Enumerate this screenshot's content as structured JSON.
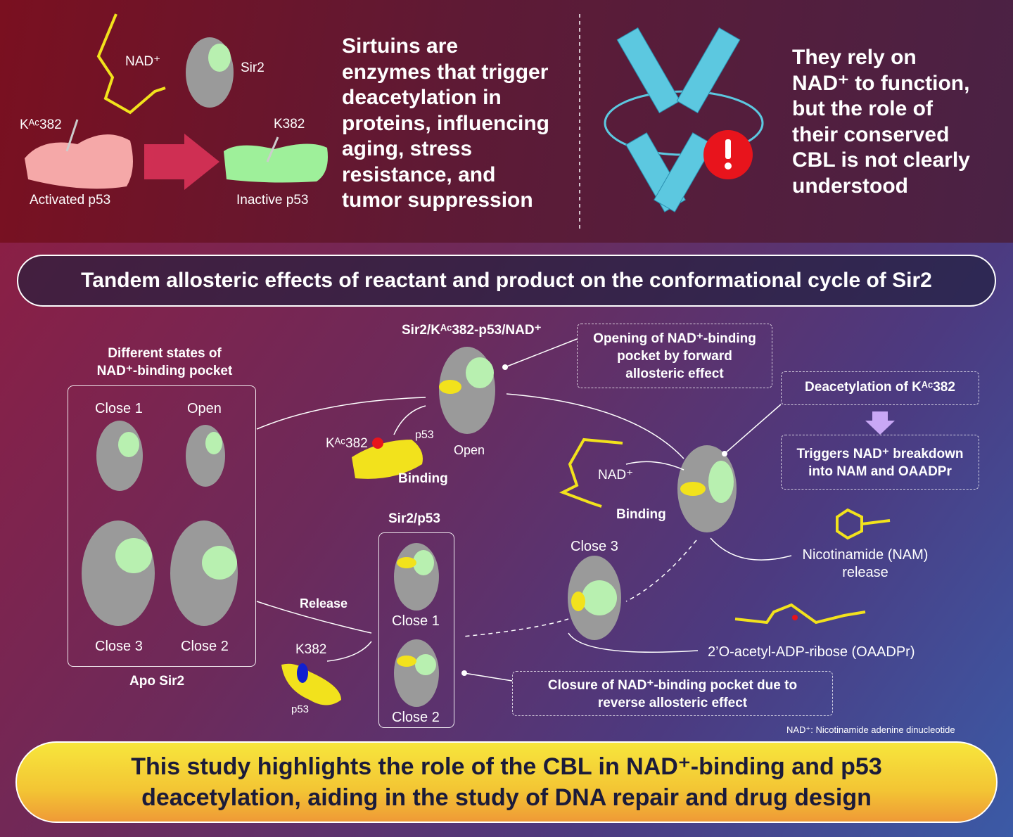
{
  "top_left": {
    "nad_label": "NAD⁺",
    "sir2_label": "Sir2",
    "kac_label": "Kᴬᶜ382",
    "k_label": "K382",
    "activated": "Activated p53",
    "inactive": "Inactive p53"
  },
  "top_text": [
    "Sirtuins are",
    "enzymes that trigger",
    "deacetylation in",
    "proteins, influencing",
    "aging, stress",
    "resistance, and",
    "tumor suppression"
  ],
  "top_right_text": [
    "They rely on",
    "NAD⁺ to function,",
    "but the role of",
    "their conserved",
    "CBL is not clearly",
    "understood"
  ],
  "banner": "Tandem allosteric effects of reactant and product on the conformational cycle of Sir2",
  "apo": {
    "heading": [
      "Different states of",
      "NAD⁺-binding pocket"
    ],
    "close1": "Close 1",
    "open": "Open",
    "close3": "Close 3",
    "close2": "Close 2",
    "caption": "Apo Sir2"
  },
  "complex": {
    "title": "Sir2/Kᴬᶜ382-p53/NAD⁺",
    "kac": "Kᴬᶜ382",
    "p53": "p53",
    "open": "Open",
    "binding": "Binding"
  },
  "opening_note": [
    "Opening of NAD⁺-binding",
    "pocket by forward",
    "allosteric effect"
  ],
  "deacetylation": "Deacetylation of Kᴬᶜ382",
  "triggers": [
    "Triggers NAD⁺ breakdown",
    "into NAM and OAADPr"
  ],
  "nad_binding": {
    "nad": "NAD⁺",
    "binding": "Binding"
  },
  "close3": "Close 3",
  "nam": [
    "Nicotinamide (NAM)",
    "release"
  ],
  "oaadpr": "2’O-acetyl-ADP-ribose (OAADPr)",
  "sir2p53": {
    "title": "Sir2/p53",
    "close1": "Close 1",
    "close2": "Close 2"
  },
  "release": {
    "label": "Release",
    "k382": "K382",
    "p53": "p53"
  },
  "closure_note": [
    "Closure of NAD⁺-binding pocket due to",
    "reverse allosteric effect"
  ],
  "footnote": "NAD⁺: Nicotinamide adenine dinucleotide",
  "conclusion": [
    "This study highlights the role of the CBL in NAD⁺-binding and p53",
    "deacetylation, aiding in the study of DNA repair and drug design"
  ],
  "colors": {
    "protein": "#9a9a9a",
    "pocket": "#b8f0b0",
    "p53_ligand": "#f2e21c",
    "helix": "#5cc8e0",
    "alert": "#e8141c",
    "banner_fill": "#2a2848",
    "footer_yellow": "#f5e23a"
  }
}
